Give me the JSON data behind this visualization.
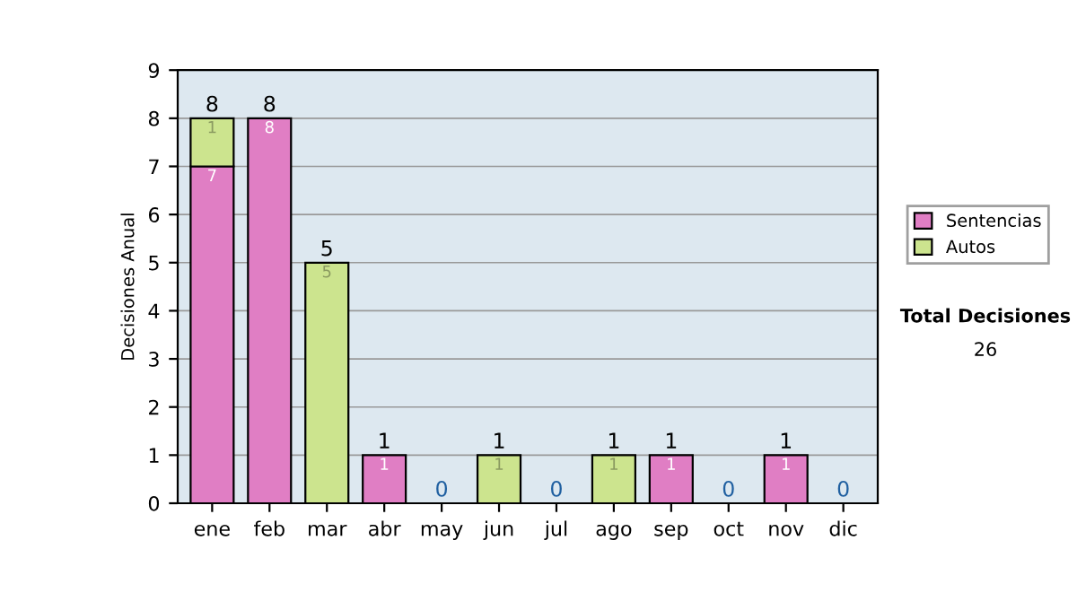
{
  "chart_data": {
    "type": "bar",
    "stacked": true,
    "ylabel": "Decisiones Anual",
    "categories": [
      "ene",
      "feb",
      "mar",
      "abr",
      "may",
      "jun",
      "jul",
      "ago",
      "sep",
      "oct",
      "nov",
      "dic"
    ],
    "series": [
      {
        "name": "Sentencias",
        "color": "#e07ec4",
        "values": [
          7,
          8,
          0,
          1,
          0,
          0,
          0,
          0,
          1,
          0,
          1,
          0
        ],
        "value_labels": [
          "7",
          "8",
          null,
          "1",
          null,
          null,
          null,
          null,
          "1",
          null,
          "1",
          null
        ]
      },
      {
        "name": "Autos",
        "color": "#cce48e",
        "values": [
          1,
          0,
          5,
          0,
          0,
          1,
          0,
          1,
          0,
          0,
          0,
          0
        ],
        "value_labels": [
          "1",
          null,
          "5",
          null,
          null,
          "1",
          null,
          "1",
          null,
          null,
          null,
          null
        ]
      }
    ],
    "totals": [
      "8",
      "8",
      "5",
      "1",
      "0",
      "1",
      "0",
      "1",
      "1",
      "0",
      "1",
      "0"
    ],
    "ylim": [
      0,
      9
    ],
    "yticks": [
      0,
      1,
      2,
      3,
      4,
      5,
      6,
      7,
      8,
      9
    ],
    "grid": "y",
    "legend": "right",
    "annotations": [
      "Total Decisiones",
      "26"
    ]
  }
}
